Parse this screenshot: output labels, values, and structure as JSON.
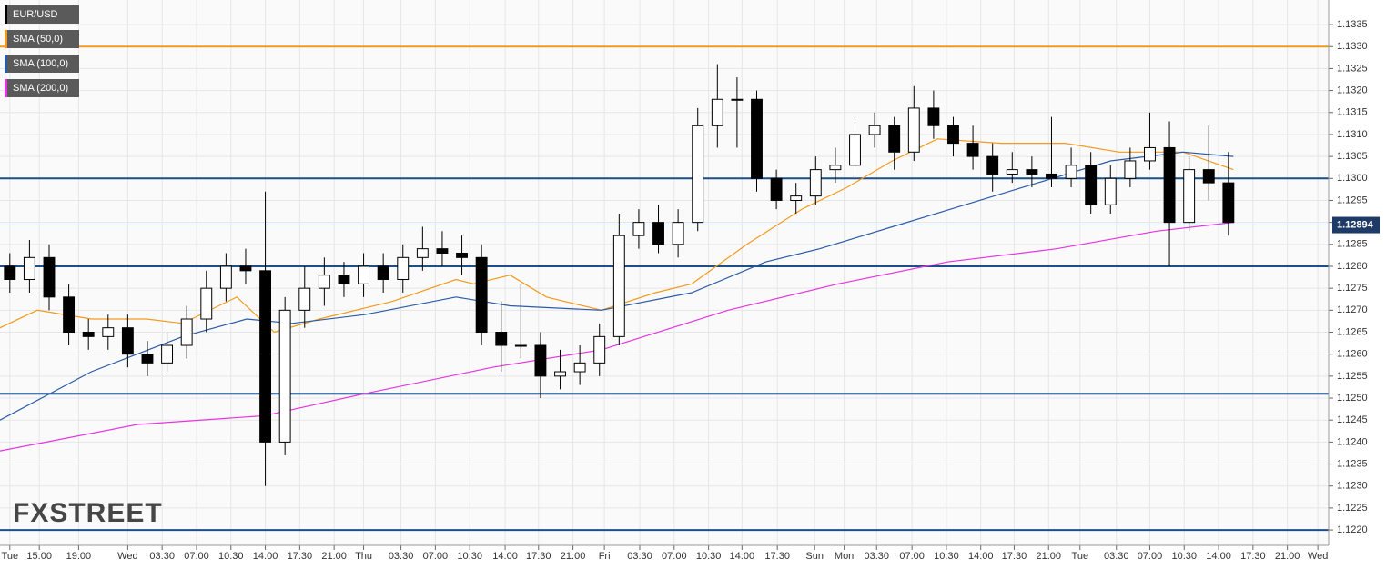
{
  "chart_data": {
    "type": "candlestick",
    "name": "EUR/USD",
    "watermark": "FXSTREET",
    "x": [
      0,
      2,
      4,
      6,
      8,
      10,
      12,
      14,
      16,
      18,
      20,
      22,
      24,
      26,
      28,
      30,
      32,
      34,
      36,
      38,
      40,
      42,
      44,
      46,
      48,
      50,
      52,
      54,
      56,
      58,
      60,
      62,
      64,
      66,
      68,
      70,
      72,
      74,
      76,
      78,
      80,
      82,
      84,
      86,
      88,
      90,
      92,
      94,
      96,
      98,
      100,
      102,
      104,
      106,
      108,
      110,
      112,
      114,
      116,
      118,
      120,
      122,
      124
    ],
    "open": [
      1.128,
      1.1277,
      1.1282,
      1.1273,
      1.1265,
      1.1264,
      1.1266,
      1.126,
      1.1258,
      1.1262,
      1.1268,
      1.1275,
      1.128,
      1.1279,
      1.124,
      1.127,
      1.1275,
      1.1278,
      1.1276,
      1.128,
      1.1277,
      1.1282,
      1.1284,
      1.1283,
      1.1282,
      1.1265,
      1.1262,
      1.1262,
      1.1255,
      1.1256,
      1.1258,
      1.1264,
      1.1287,
      1.129,
      1.1285,
      1.129,
      1.1312,
      1.1318,
      1.1318,
      1.13,
      1.1295,
      1.1296,
      1.1302,
      1.1303,
      1.131,
      1.1312,
      1.1306,
      1.1316,
      1.1312,
      1.1308,
      1.1305,
      1.1301,
      1.1302,
      1.1301,
      1.13,
      1.1303,
      1.1294,
      1.13,
      1.1304,
      1.1307,
      1.129,
      1.1302,
      1.1299
    ],
    "high": [
      1.1283,
      1.1286,
      1.1285,
      1.1276,
      1.1268,
      1.1269,
      1.1269,
      1.1263,
      1.1265,
      1.1271,
      1.1279,
      1.1283,
      1.1284,
      1.1297,
      1.1273,
      1.128,
      1.1282,
      1.1281,
      1.1283,
      1.1283,
      1.1285,
      1.1289,
      1.1288,
      1.1287,
      1.1285,
      1.1272,
      1.1276,
      1.1265,
      1.1261,
      1.1262,
      1.1267,
      1.1292,
      1.1293,
      1.1294,
      1.1293,
      1.1316,
      1.1326,
      1.1323,
      1.132,
      1.1302,
      1.1299,
      1.1305,
      1.1307,
      1.1314,
      1.1315,
      1.1314,
      1.1321,
      1.132,
      1.1314,
      1.1312,
      1.1308,
      1.1306,
      1.1305,
      1.1314,
      1.1307,
      1.1306,
      1.1303,
      1.1307,
      1.1315,
      1.1313,
      1.1305,
      1.1312,
      1.1306
    ],
    "low": [
      1.1274,
      1.1274,
      1.127,
      1.1262,
      1.1261,
      1.1261,
      1.1257,
      1.1255,
      1.1256,
      1.1259,
      1.1265,
      1.1272,
      1.1276,
      1.123,
      1.1237,
      1.1266,
      1.1271,
      1.1273,
      1.1273,
      1.1274,
      1.1274,
      1.1279,
      1.128,
      1.1278,
      1.1262,
      1.1256,
      1.1259,
      1.125,
      1.1252,
      1.1253,
      1.1255,
      1.1262,
      1.1284,
      1.1283,
      1.1282,
      1.1288,
      1.1307,
      1.1307,
      1.1297,
      1.1293,
      1.1292,
      1.1294,
      1.1299,
      1.13,
      1.1307,
      1.1302,
      1.1304,
      1.1309,
      1.1305,
      1.1302,
      1.1297,
      1.1299,
      1.1298,
      1.1298,
      1.1298,
      1.1292,
      1.1292,
      1.1298,
      1.1302,
      1.128,
      1.1288,
      1.1295,
      1.1287
    ],
    "close": [
      1.1277,
      1.1282,
      1.1273,
      1.1265,
      1.1264,
      1.1266,
      1.126,
      1.1258,
      1.1262,
      1.1268,
      1.1275,
      1.128,
      1.1279,
      1.124,
      1.127,
      1.1275,
      1.1278,
      1.1276,
      1.128,
      1.1277,
      1.1282,
      1.1284,
      1.1283,
      1.1282,
      1.1265,
      1.1262,
      1.1262,
      1.1255,
      1.1256,
      1.1258,
      1.1264,
      1.1287,
      1.129,
      1.1285,
      1.129,
      1.1312,
      1.1318,
      1.1318,
      1.13,
      1.1295,
      1.1296,
      1.1302,
      1.1303,
      1.131,
      1.1312,
      1.1306,
      1.1316,
      1.1312,
      1.1308,
      1.1305,
      1.1301,
      1.1302,
      1.1301,
      1.13,
      1.1303,
      1.1294,
      1.13,
      1.1304,
      1.1307,
      1.129,
      1.1302,
      1.1299,
      1.129
    ],
    "series": [
      {
        "name": "SMA (50,0)",
        "color": "#f39a1e",
        "x": [
          -1,
          2.8,
          8.3,
          13.9,
          17.6,
          23.1,
          26.9,
          31.5,
          38.9,
          45.4,
          47.2,
          50.9,
          54.6,
          60.2,
          65.7,
          69.4,
          75,
          80.6,
          85.2,
          89.8,
          94.4,
          100.9,
          107.4,
          112.9,
          119.4,
          124.5
        ],
        "values": [
          1.1266,
          1.127,
          1.1268,
          1.1268,
          1.1267,
          1.1273,
          1.1265,
          1.1268,
          1.1272,
          1.1277,
          1.1276,
          1.1278,
          1.1273,
          1.127,
          1.1274,
          1.1276,
          1.1285,
          1.1293,
          1.1298,
          1.1304,
          1.1309,
          1.1308,
          1.1308,
          1.1306,
          1.1306,
          1.1302
        ]
      },
      {
        "name": "SMA (100,0)",
        "color": "#2a5ba8",
        "x": [
          -1,
          8.3,
          17.6,
          24.1,
          28.7,
          36.1,
          45.4,
          50.9,
          60.2,
          69.4,
          76.9,
          82.4,
          89.8,
          97.2,
          104.6,
          112,
          119.4,
          124.5
        ],
        "values": [
          1.1245,
          1.1256,
          1.1264,
          1.1268,
          1.1267,
          1.1269,
          1.1273,
          1.1271,
          1.127,
          1.1274,
          1.1281,
          1.1284,
          1.1289,
          1.1294,
          1.1299,
          1.1304,
          1.1306,
          1.1305
        ]
      },
      {
        "name": "SMA (200,0)",
        "color": "#e635e0",
        "x": [
          -1,
          13,
          25.9,
          36.1,
          49.1,
          60.2,
          73.1,
          84.3,
          95.4,
          106.5,
          116.7,
          124.5
        ],
        "values": [
          1.1238,
          1.1244,
          1.1246,
          1.1251,
          1.1257,
          1.1261,
          1.127,
          1.1276,
          1.1281,
          1.1284,
          1.1288,
          1.129
        ]
      }
    ],
    "levels": [
      {
        "value": 1.133,
        "color": "#f39a1e"
      },
      {
        "value": 1.13,
        "color": "#1b4f8a"
      },
      {
        "value": 1.128,
        "color": "#1b4f8a"
      },
      {
        "value": 1.1251,
        "color": "#1b4f8a"
      },
      {
        "value": 1.122,
        "color": "#1b4f8a"
      }
    ],
    "last_price": {
      "value": 1.12894,
      "label": "1.12894",
      "color": "#1e3a66"
    },
    "xlim": [
      -1,
      134.2
    ],
    "ylim": [
      1.12165,
      1.13406
    ],
    "grid": true,
    "xticks": [
      {
        "value": 0,
        "label": "Tue"
      },
      {
        "value": 3,
        "label": "15:00"
      },
      {
        "value": 7,
        "label": "19:00"
      },
      {
        "value": 12,
        "label": "Wed"
      },
      {
        "value": 15.5,
        "label": "03:30"
      },
      {
        "value": 19,
        "label": "07:00"
      },
      {
        "value": 22.5,
        "label": "10:30"
      },
      {
        "value": 26,
        "label": "14:00"
      },
      {
        "value": 29.5,
        "label": "17:30"
      },
      {
        "value": 33,
        "label": "21:00"
      },
      {
        "value": 36,
        "label": "Thu"
      },
      {
        "value": 39.8,
        "label": "03:30"
      },
      {
        "value": 43.3,
        "label": "07:00"
      },
      {
        "value": 46.8,
        "label": "10:30"
      },
      {
        "value": 50.4,
        "label": "14:00"
      },
      {
        "value": 53.8,
        "label": "17:30"
      },
      {
        "value": 57.3,
        "label": "21:00"
      },
      {
        "value": 60.5,
        "label": "Fri"
      },
      {
        "value": 64.1,
        "label": "03:30"
      },
      {
        "value": 67.6,
        "label": "07:00"
      },
      {
        "value": 71.1,
        "label": "10:30"
      },
      {
        "value": 74.5,
        "label": "14:00"
      },
      {
        "value": 78.1,
        "label": "17:30"
      },
      {
        "value": 81.9,
        "label": "Sun"
      },
      {
        "value": 84.9,
        "label": "Mon"
      },
      {
        "value": 88.2,
        "label": "03:30"
      },
      {
        "value": 91.8,
        "label": "07:00"
      },
      {
        "value": 95.3,
        "label": "10:30"
      },
      {
        "value": 98.8,
        "label": "14:00"
      },
      {
        "value": 102.2,
        "label": "17:30"
      },
      {
        "value": 105.7,
        "label": "21:00"
      },
      {
        "value": 108.9,
        "label": "Tue"
      },
      {
        "value": 112.6,
        "label": "03:30"
      },
      {
        "value": 116,
        "label": "07:00"
      },
      {
        "value": 119.5,
        "label": "10:30"
      },
      {
        "value": 123,
        "label": "14:00"
      },
      {
        "value": 126.5,
        "label": "17:30"
      },
      {
        "value": 130,
        "label": "21:00"
      },
      {
        "value": 133.1,
        "label": "Wed"
      }
    ],
    "yticks": [
      {
        "value": 1.122,
        "label": "1.1220"
      },
      1.1225,
      {
        "value": 1.123,
        "label": "1.1230"
      },
      1.1235,
      {
        "value": 1.124,
        "label": "1.1240"
      },
      1.1245,
      {
        "value": 1.125,
        "label": "1.1250"
      },
      1.1255,
      {
        "value": 1.126,
        "label": "1.1260"
      },
      1.1265,
      {
        "value": 1.127,
        "label": "1.1270"
      },
      1.1275,
      {
        "value": 1.128,
        "label": "1.1280"
      },
      1.1285,
      {
        "value": 1.129,
        "label": "1.1290"
      },
      1.1295,
      {
        "value": 1.13,
        "label": "1.1300"
      },
      1.1305,
      {
        "value": 1.131,
        "label": "1.1310"
      },
      1.1315,
      {
        "value": 1.132,
        "label": "1.1320"
      },
      1.1325,
      {
        "value": 1.133,
        "label": "1.1330"
      },
      1.1335
    ]
  }
}
